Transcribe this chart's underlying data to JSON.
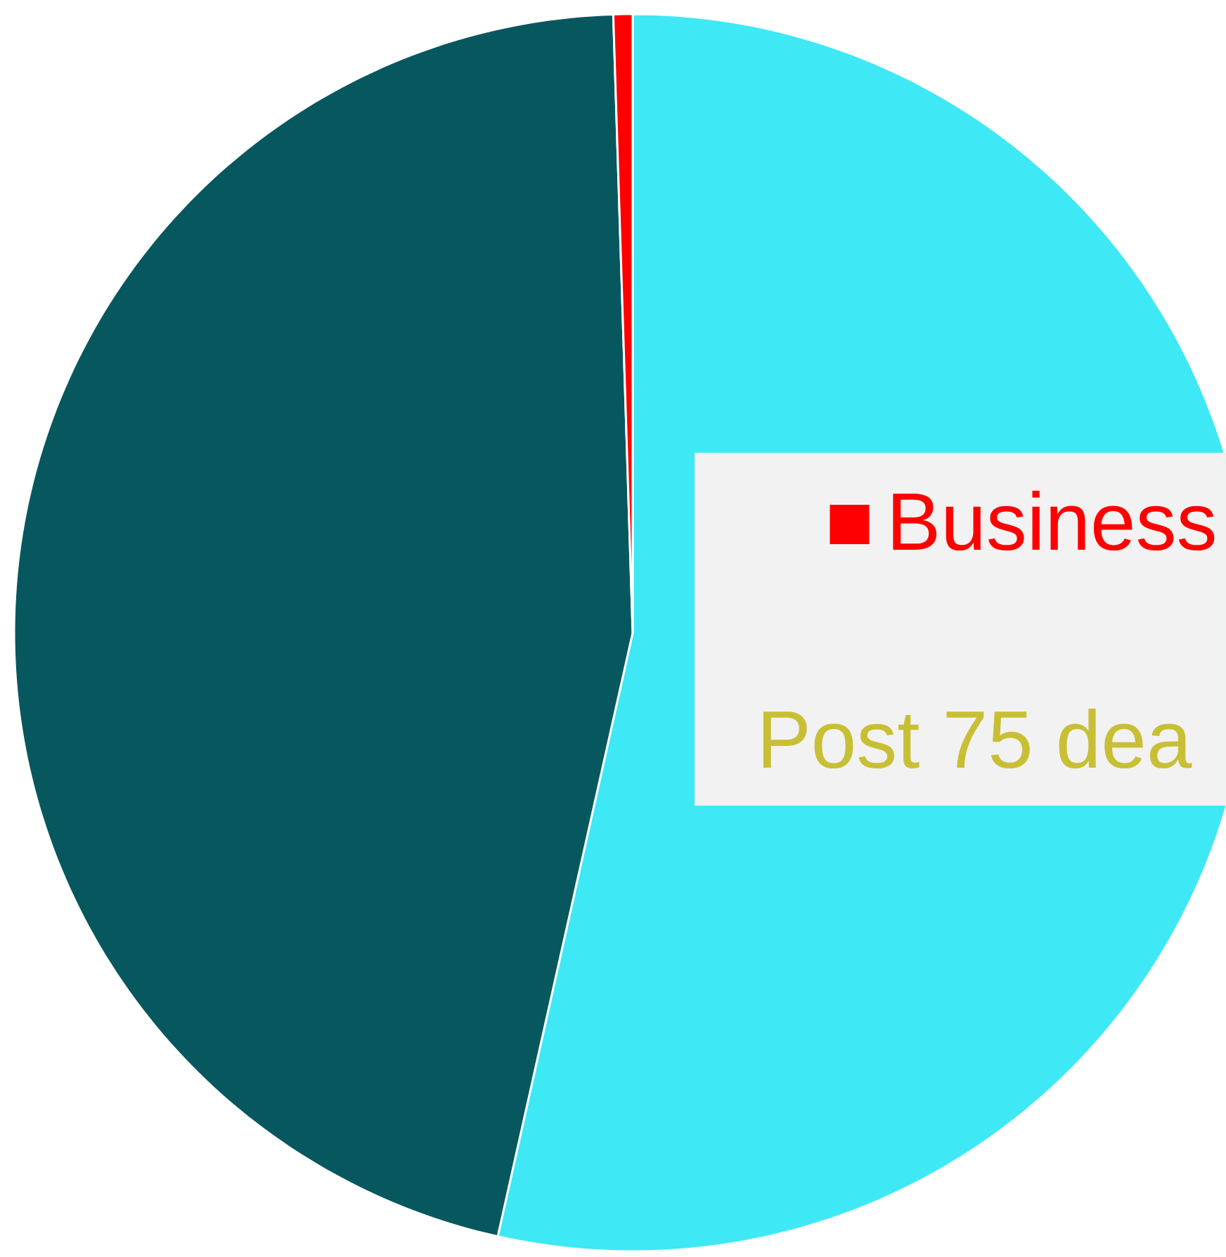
{
  "chart_data": {
    "type": "pie",
    "categories": [
      null,
      null,
      "Business"
    ],
    "values": [
      53.5,
      46,
      0.5
    ],
    "colors": [
      "#3ee8f5",
      "#07585e",
      "#ff0000"
    ],
    "legend": "right",
    "annotations": [
      "Post 75 dea"
    ]
  }
}
